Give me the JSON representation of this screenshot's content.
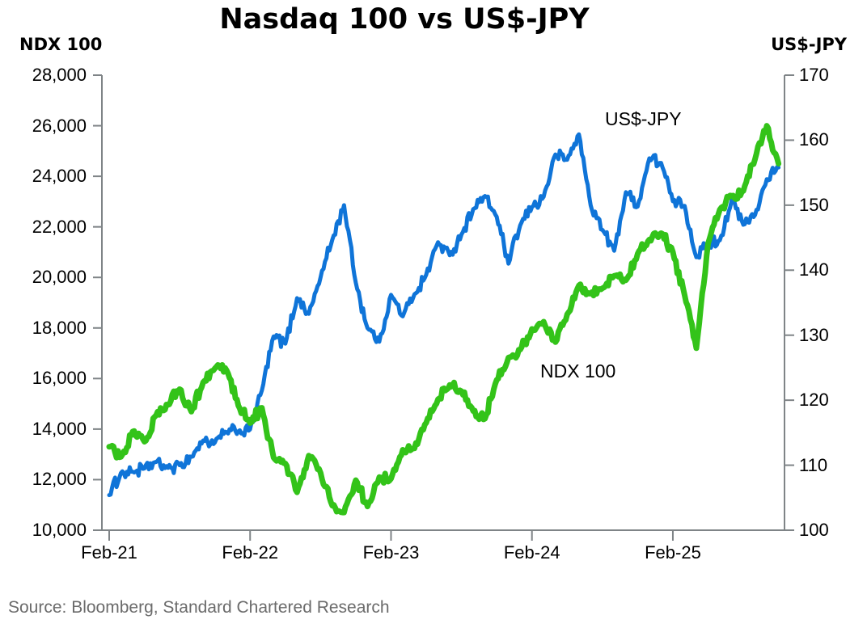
{
  "header": {
    "title": "Nasdaq 100 vs US$-JPY"
  },
  "footer": {
    "source": "Source: Bloomberg, Standard Chartered Research"
  },
  "annotations": {
    "us_jpy": "US$-JPY",
    "ndx": "NDX 100"
  },
  "colors": {
    "ndx_green": "#33C319",
    "jpy_blue": "#0F74D8",
    "axis_gray": "#7F8487",
    "source_gray": "#6B6B6B"
  },
  "chart_data": {
    "type": "line",
    "title": "Nasdaq 100 vs US$-JPY",
    "grid": false,
    "legend": "inline-annotations",
    "x_start": "Feb-21",
    "x_frequency": "monthly",
    "x_tick_labels": [
      "Feb-21",
      "Feb-22",
      "Feb-23",
      "Feb-24",
      "Feb-25"
    ],
    "x_tick_month_indices": [
      0,
      12,
      24,
      36,
      48
    ],
    "left_axis": {
      "label": "NDX 100",
      "min": 10000,
      "max": 28000,
      "tick_step": 2000,
      "tick_labels": [
        "28,000",
        "26,000",
        "24,000",
        "22,000",
        "20,000",
        "18,000",
        "16,000",
        "14,000",
        "12,000",
        "10,000"
      ]
    },
    "right_axis": {
      "label": "US$-JPY",
      "min": 100,
      "max": 170,
      "tick_step": 10,
      "tick_labels": [
        "170",
        "160",
        "150",
        "140",
        "130",
        "120",
        "110",
        "100"
      ]
    },
    "series": [
      {
        "name": "US$-JPY",
        "axis": "right",
        "color": "#0F74D8",
        "line_width": 5,
        "values": [
          105.4,
          108.8,
          109.0,
          109.5,
          110.5,
          109.6,
          110.0,
          111.3,
          113.8,
          113.5,
          115.1,
          115.2,
          115.5,
          121.5,
          129.8,
          128.7,
          135.7,
          133.3,
          138.9,
          144.7,
          150.0,
          138.1,
          131.1,
          129.0,
          136.2,
          132.9,
          136.3,
          139.3,
          144.3,
          142.3,
          145.5,
          149.4,
          151.4,
          148.2,
          141.0,
          146.9,
          149.7,
          151.3,
          157.8,
          157.0,
          160.9,
          150.0,
          146.2,
          143.0,
          152.0,
          149.8,
          157.2,
          156.5,
          150.6,
          149.9,
          142.0,
          144.0,
          144.6,
          150.7,
          147.0,
          148.5,
          154.0,
          155.8
        ]
      },
      {
        "name": "NDX 100",
        "axis": "left",
        "color": "#33C319",
        "line_width": 7,
        "values": [
          13300,
          12900,
          13900,
          13500,
          14550,
          14960,
          15580,
          14690,
          15850,
          16400,
          16320,
          14930,
          14240,
          14840,
          12870,
          12640,
          11500,
          12950,
          12270,
          10970,
          10700,
          11980,
          10940,
          12100,
          12040,
          13180,
          13240,
          14250,
          15180,
          15750,
          15500,
          14720,
          14410,
          15950,
          16830,
          17140,
          17960,
          18250,
          17440,
          18540,
          19680,
          19360,
          19570,
          20060,
          19890,
          20930,
          21500,
          21750,
          21000,
          19300,
          17200,
          21340,
          22680,
          23220,
          23420,
          24680,
          26000,
          24500
        ]
      }
    ],
    "source": "Source: Bloomberg, Standard Chartered Research"
  }
}
